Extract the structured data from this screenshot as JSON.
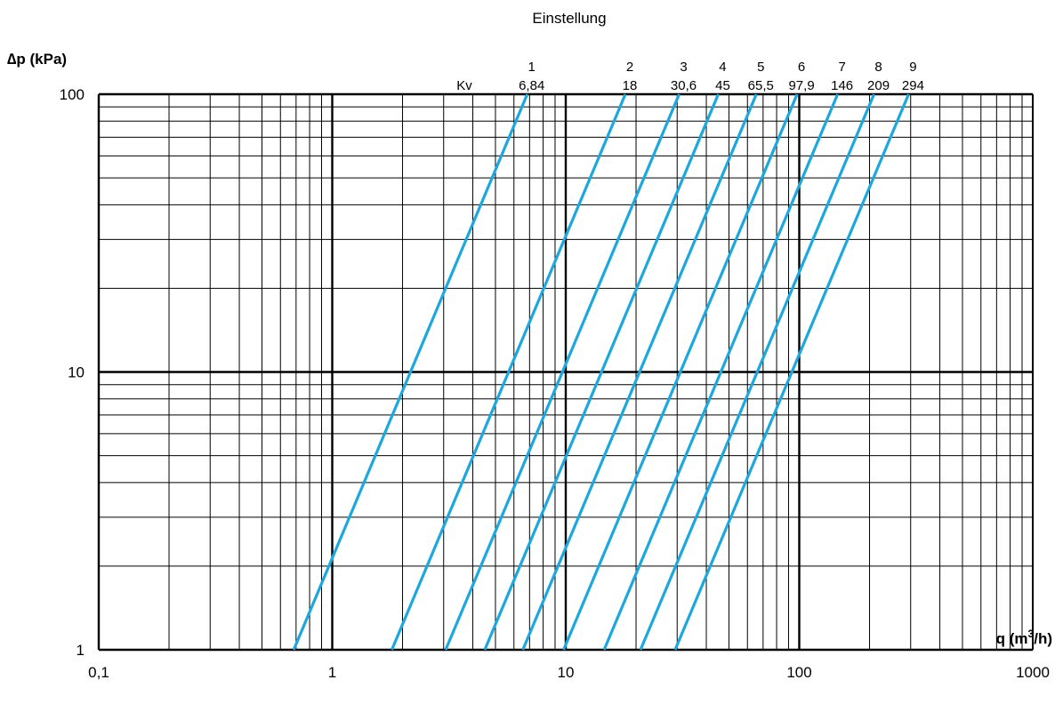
{
  "chart_data": {
    "type": "line",
    "title": "Einstellung",
    "ylabel": "∆p (kPa)",
    "xlabel_main": "q (m",
    "xlabel_sup": "3",
    "xlabel_end": "/h)",
    "x_scale": "log",
    "y_scale": "log",
    "xlim": [
      0.1,
      1000
    ],
    "ylim": [
      1,
      100
    ],
    "grid": true,
    "x_ticks": [
      {
        "value": 0.1,
        "label": "0,1"
      },
      {
        "value": 1,
        "label": "1"
      },
      {
        "value": 10,
        "label": "10"
      },
      {
        "value": 100,
        "label": "100"
      },
      {
        "value": 1000,
        "label": "1000"
      }
    ],
    "y_ticks": [
      {
        "value": 1,
        "label": "1"
      },
      {
        "value": 10,
        "label": "10"
      },
      {
        "value": 100,
        "label": "100"
      }
    ],
    "kv_label": "Kv",
    "series_color": "#1ea7dd",
    "series": [
      {
        "setting": "1",
        "kv_text": "6,84",
        "kv": 6.84
      },
      {
        "setting": "2",
        "kv_text": "18",
        "kv": 18
      },
      {
        "setting": "3",
        "kv_text": "30,6",
        "kv": 30.6
      },
      {
        "setting": "4",
        "kv_text": "45",
        "kv": 45
      },
      {
        "setting": "5",
        "kv_text": "65,5",
        "kv": 65.5
      },
      {
        "setting": "6",
        "kv_text": "97,9",
        "kv": 97.9
      },
      {
        "setting": "7",
        "kv_text": "146",
        "kv": 146
      },
      {
        "setting": "8",
        "kv_text": "209",
        "kv": 209
      },
      {
        "setting": "9",
        "kv_text": "294",
        "kv": 294
      }
    ]
  }
}
